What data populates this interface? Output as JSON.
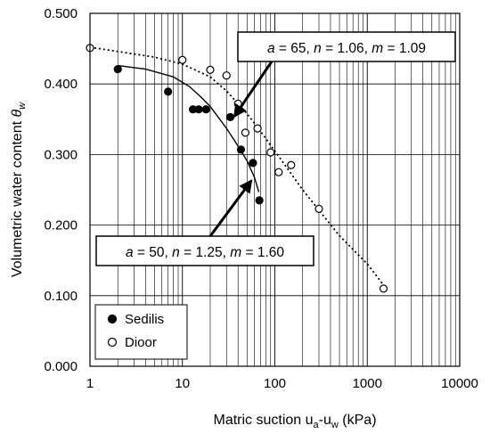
{
  "chart_data": {
    "type": "scatter",
    "xscale": "log",
    "xlim": [
      1,
      10000
    ],
    "ylim": [
      0,
      0.5
    ],
    "xticks": [
      "1",
      "10",
      "100",
      "1000",
      "10000"
    ],
    "yticks": [
      "0.000",
      "0.100",
      "0.200",
      "0.300",
      "0.400",
      "0.500"
    ],
    "xlabel": "Matric suction u",
    "xlabel_sub1": "a",
    "xlabel_mid": "-u",
    "xlabel_sub2": "w",
    "xlabel_unit": " (kPa)",
    "ylabel": "Volumetric water content ",
    "ylabel_symbol": "θ",
    "ylabel_sub": "w",
    "grid": true,
    "legend_position": "bottom-left",
    "series": [
      {
        "name": "Sedilis",
        "marker": "filled-circle",
        "color": "#000000",
        "points": [
          [
            2,
            0.421
          ],
          [
            7,
            0.389
          ],
          [
            13,
            0.364
          ],
          [
            15,
            0.364
          ],
          [
            18,
            0.364
          ],
          [
            33,
            0.353
          ],
          [
            43,
            0.307
          ],
          [
            58,
            0.288
          ],
          [
            68,
            0.235
          ]
        ]
      },
      {
        "name": "Dioor",
        "marker": "open-circle",
        "color": "#000000",
        "points": [
          [
            1,
            0.451
          ],
          [
            10,
            0.434
          ],
          [
            20,
            0.42
          ],
          [
            30,
            0.412
          ],
          [
            40,
            0.372
          ],
          [
            48,
            0.331
          ],
          [
            65,
            0.337
          ],
          [
            90,
            0.303
          ],
          [
            110,
            0.275
          ],
          [
            150,
            0.285
          ],
          [
            300,
            0.223
          ],
          [
            1500,
            0.11
          ]
        ]
      }
    ],
    "fit_curves": [
      {
        "style": "solid",
        "points": [
          [
            2,
            0.426
          ],
          [
            4,
            0.421
          ],
          [
            8,
            0.41
          ],
          [
            12,
            0.396
          ],
          [
            16,
            0.381
          ],
          [
            20,
            0.368
          ],
          [
            30,
            0.337
          ],
          [
            40,
            0.312
          ],
          [
            50,
            0.291
          ],
          [
            60,
            0.268
          ],
          [
            67,
            0.247
          ]
        ]
      },
      {
        "style": "dotted",
        "points": [
          [
            1,
            0.452
          ],
          [
            5,
            0.438
          ],
          [
            10,
            0.428
          ],
          [
            20,
            0.41
          ],
          [
            30,
            0.39
          ],
          [
            50,
            0.358
          ],
          [
            70,
            0.333
          ],
          [
            100,
            0.305
          ],
          [
            200,
            0.25
          ],
          [
            500,
            0.185
          ],
          [
            1000,
            0.145
          ],
          [
            1500,
            0.115
          ]
        ]
      }
    ],
    "annotations": [
      {
        "parts": [
          {
            "text": "a",
            "italic": true
          },
          {
            "text": " = 65, "
          },
          {
            "text": "n",
            "italic": true
          },
          {
            "text": " = 1.06, "
          },
          {
            "text": "m",
            "italic": true
          },
          {
            "text": " = 1.09"
          }
        ],
        "arrow_to": [
          37,
          0.355
        ]
      },
      {
        "parts": [
          {
            "text": "a",
            "italic": true
          },
          {
            "text": " = 50, "
          },
          {
            "text": "n",
            "italic": true
          },
          {
            "text": " = 1.25, "
          },
          {
            "text": "m",
            "italic": true
          },
          {
            "text": " = 1.60"
          }
        ],
        "arrow_to": [
          55,
          0.262
        ]
      }
    ]
  }
}
